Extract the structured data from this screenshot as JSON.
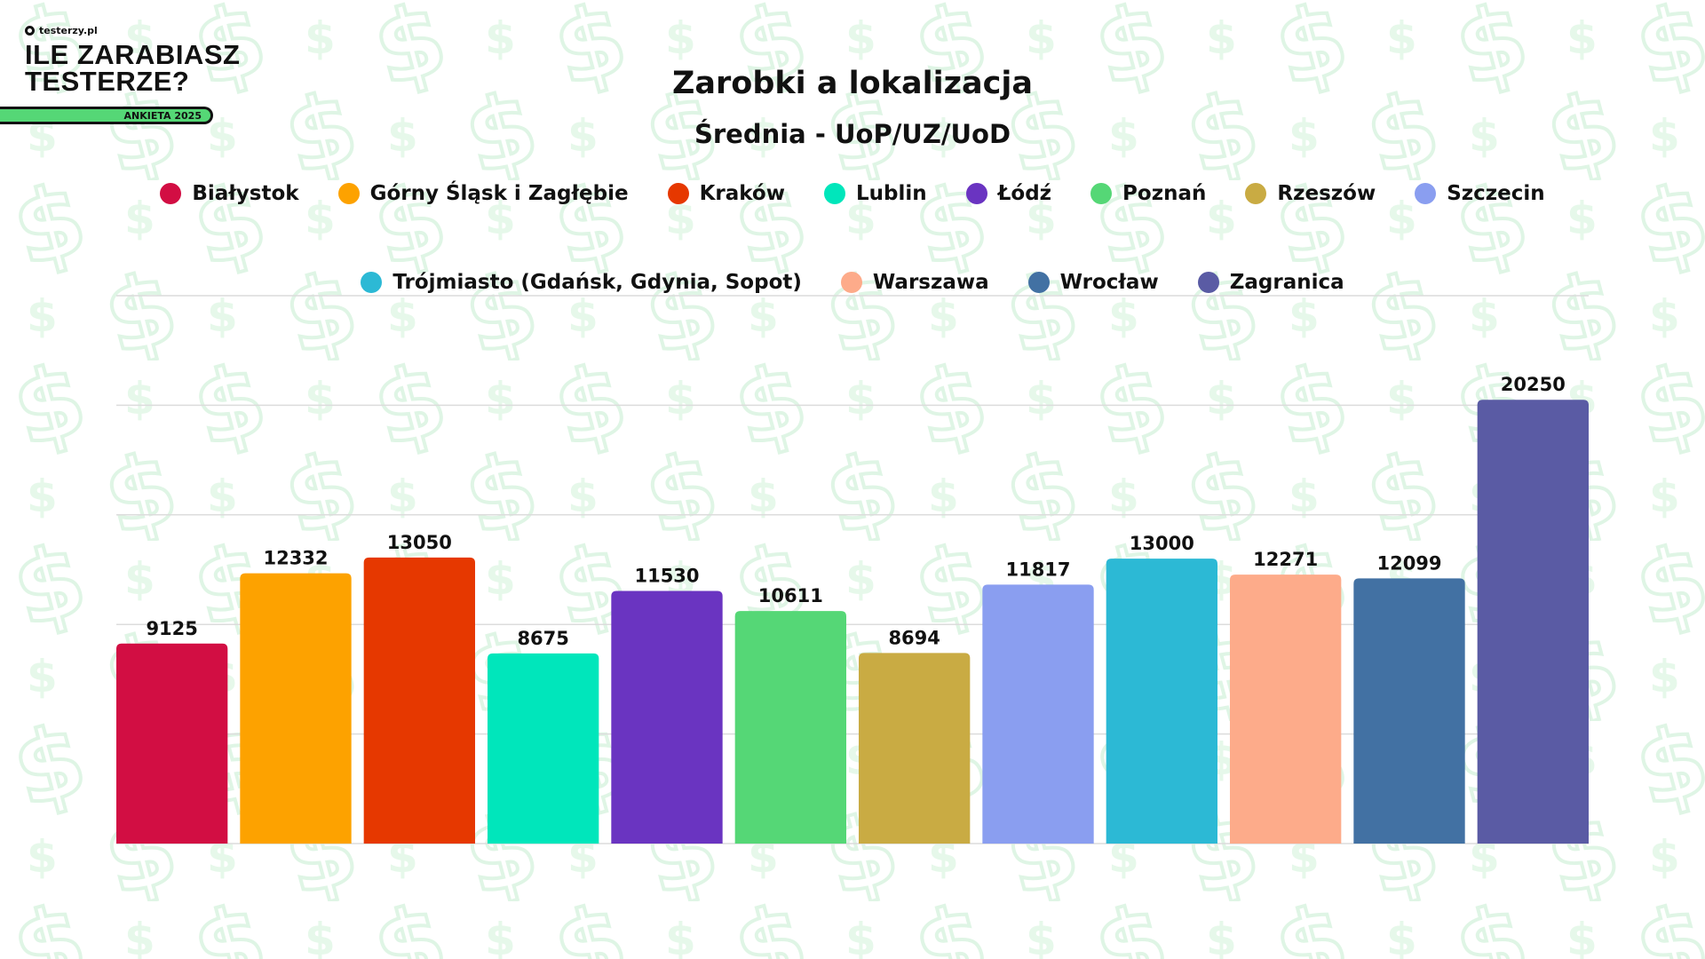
{
  "branding": {
    "site": "testerzy.pl",
    "headline_line1": "ILE ZARABIASZ",
    "headline_line2": "TESTERZE?",
    "badge": "ANKIETA 2025"
  },
  "chart_data": {
    "type": "bar",
    "title": "Zarobki a lokalizacja",
    "subtitle": "Średnia - UoP/UZ/UoD",
    "xlabel": "",
    "ylabel": "",
    "ylim": [
      0,
      25000
    ],
    "grid": true,
    "legend_placement": "top",
    "categories": [
      "Białystok",
      "Górny Śląsk i Zagłębie",
      "Kraków",
      "Lublin",
      "Łódź",
      "Poznań",
      "Rzeszów",
      "Szczecin",
      "Trójmiasto (Gdańsk, Gdynia, Sopot)",
      "Warszawa",
      "Wrocław",
      "Zagranica"
    ],
    "values": [
      9125,
      12332,
      13050,
      8675,
      11530,
      10611,
      8694,
      11817,
      13000,
      12271,
      12099,
      20250
    ],
    "colors": [
      "#d20e43",
      "#fda200",
      "#e63800",
      "#00e6bb",
      "#6a34c1",
      "#55d776",
      "#c9ab43",
      "#8a9ef0",
      "#2cb9d5",
      "#fdab8a",
      "#4271a3",
      "#5a5ba4"
    ]
  }
}
